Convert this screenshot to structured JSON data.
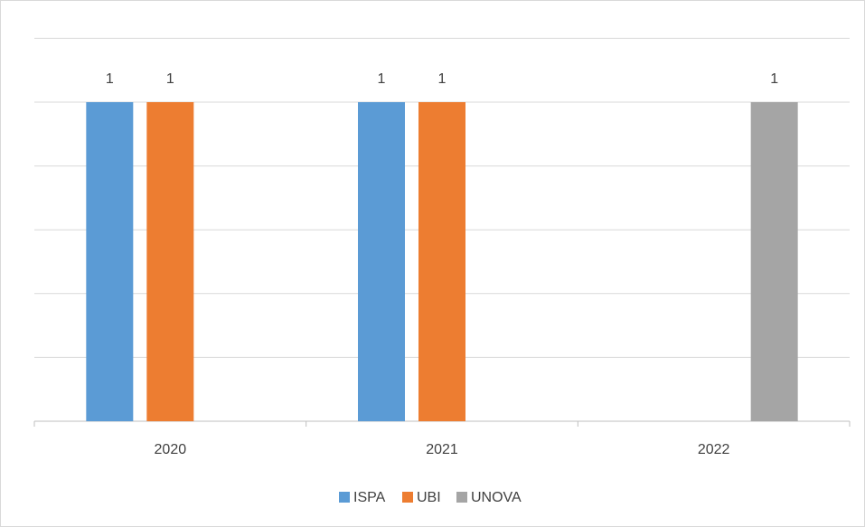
{
  "chart_data": {
    "type": "bar",
    "categories": [
      "2020",
      "2021",
      "2022"
    ],
    "series": [
      {
        "name": "ISPA",
        "color": "#5b9bd5",
        "values": [
          1,
          1,
          null
        ]
      },
      {
        "name": "UBI",
        "color": "#ed7d31",
        "values": [
          1,
          1,
          null
        ]
      },
      {
        "name": "UNOVA",
        "color": "#a5a5a5",
        "values": [
          null,
          null,
          1
        ]
      }
    ],
    "ylim": [
      0,
      1.2
    ],
    "yticks": [
      0,
      0.2,
      0.4,
      0.6,
      0.8,
      1,
      1.2
    ],
    "ytick_labels": false,
    "grid": true,
    "data_labels": true,
    "legend": "bottom"
  }
}
